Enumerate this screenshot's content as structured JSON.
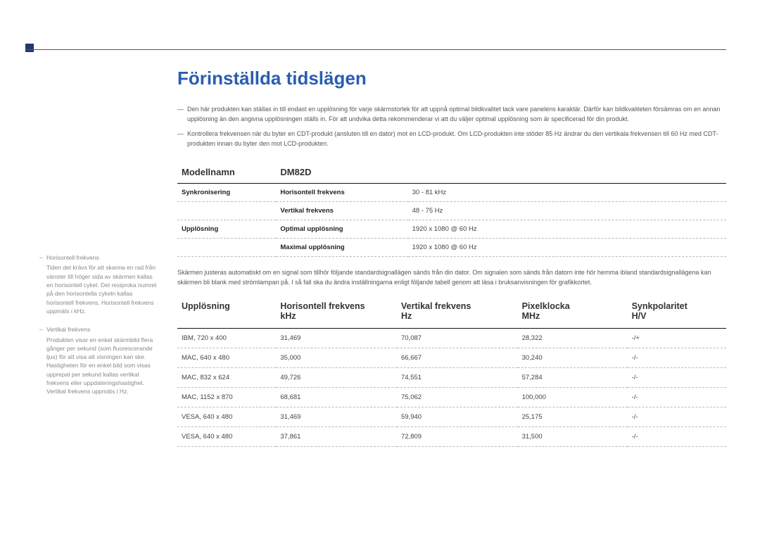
{
  "colors": {
    "accent_blue": "#2a5db0",
    "bar_navy": "#1f3a6e",
    "rule_dark": "#111111",
    "dash_gray": "#bbbbbb",
    "text_body": "#555555",
    "text_head": "#333333",
    "background": "#ffffff",
    "sidebar_gray": "#888888"
  },
  "typography": {
    "title_fontsize": 26,
    "table_header_fontsize": 13,
    "body_fontsize": 9,
    "cell_fontsize": 9.5,
    "sidebar_fontsize": 8.5
  },
  "title": "Förinställda tidslägen",
  "notes": [
    "Den här produkten kan ställas in till endast en upplösning för varje skärmstorlek för att uppnå optimal bildkvalitet tack vare panelens karaktär. Därför kan bildkvaliteten försämras om en annan upplösning än den angivna upplösningen ställs in. För att undvika detta rekommenderar vi att du väljer optimal upplösning som är specificerad för din produkt.",
    "Kontrollera frekvensen när du byter en CDT-produkt (ansluten till en dator) mot en LCD-produkt. Om LCD-produkten inte stöder 85 Hz ändrar du den vertikala frekvensen till 60 Hz med CDT-produkten innan du byter den mot LCD-produkten."
  ],
  "spec_table": {
    "type": "table",
    "col_widths_pct": [
      18,
      24,
      58
    ],
    "header": {
      "left": "Modellnamn",
      "right": "DM82D"
    },
    "rows": [
      {
        "group": "Synkronisering",
        "label": "Horisontell frekvens",
        "value": "30 - 81 kHz"
      },
      {
        "group": "",
        "label": "Vertikal frekvens",
        "value": "48 - 75 Hz"
      },
      {
        "group": "Upplösning",
        "label": "Optimal upplösning",
        "value": "1920 x 1080 @ 60 Hz"
      },
      {
        "group": "",
        "label": "Maximal upplösning",
        "value": "1920 x 1080 @ 60 Hz"
      }
    ]
  },
  "body_para": "Skärmen justeras automatiskt om en signal som tillhör följande standardsignallägen sänds från din dator. Om signalen som sänds från datorn inte hör hemma ibland standardsignallägena kan skärmen bli blank med strömlampan på. I så fall ska du ändra inställningarna enligt följande tabell genom att läsa i bruksanvisningen för grafikkortet.",
  "mode_table": {
    "type": "table",
    "col_widths_pct": [
      18,
      22,
      22,
      20,
      18
    ],
    "columns": [
      {
        "title": "Upplösning",
        "unit": ""
      },
      {
        "title": "Horisontell frekvens",
        "unit": "kHz"
      },
      {
        "title": "Vertikal frekvens",
        "unit": "Hz"
      },
      {
        "title": "Pixelklocka",
        "unit": "MHz"
      },
      {
        "title": "Synkpolaritet",
        "unit": "H/V"
      }
    ],
    "rows": [
      [
        "IBM, 720 x 400",
        "31,469",
        "70,087",
        "28,322",
        "-/+"
      ],
      [
        "MAC, 640 x 480",
        "35,000",
        "66,667",
        "30,240",
        "-/-"
      ],
      [
        "MAC, 832 x 624",
        "49,726",
        "74,551",
        "57,284",
        "-/-"
      ],
      [
        "MAC, 1152 x 870",
        "68,681",
        "75,062",
        "100,000",
        "-/-"
      ],
      [
        "VESA, 640 x 480",
        "31,469",
        "59,940",
        "25,175",
        "-/-"
      ],
      [
        "VESA, 640 x 480",
        "37,861",
        "72,809",
        "31,500",
        "-/-"
      ]
    ]
  },
  "sidebar": [
    {
      "title": "Horisontell frekvens",
      "body": "Tiden det krävs för att skanna en rad från vänster till höger sida av skärmen kallas en horisontell cykel. Det resiproka numret på den horisontella cykeln kallas horisontell frekvens. Horisontell frekvens uppmäts i kHz."
    },
    {
      "title": "Vertikal frekvens",
      "body": "Produkten visar en enkel skärmbild flera gånger per sekund (som fluorescerande ljus) för att visa att visningen kan ske. Hastigheten för en enkel bild som visas upprepat per sekund kallas vertikal frekvens eller uppdateringshastighet. Vertikal frekvens uppmäts i Hz."
    }
  ]
}
